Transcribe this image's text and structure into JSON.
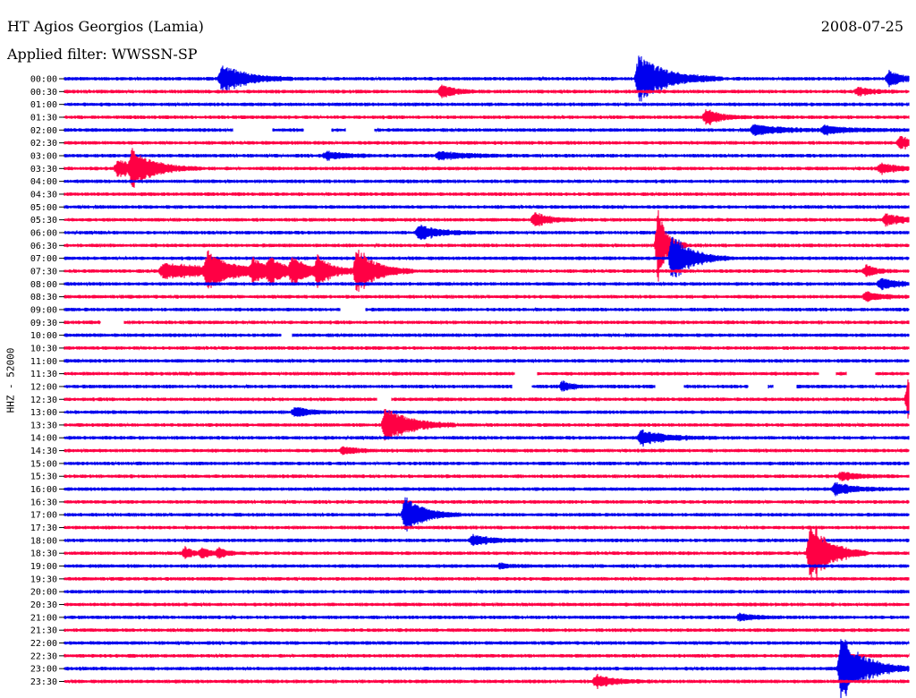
{
  "header": {
    "station": "HT Agios Georgios (Lamia)",
    "date": "2008-07-25",
    "filter_label": "Applied filter: WWSSN-SP"
  },
  "channel_label": "HHZ - 52000",
  "colors": {
    "blue": "#0000ee",
    "red": "#ff0044",
    "axis": "#000000"
  },
  "chart_data": {
    "type": "line",
    "title": "",
    "row_labels": [
      "00:00",
      "00:30",
      "01:00",
      "01:30",
      "02:00",
      "02:30",
      "03:00",
      "03:30",
      "04:00",
      "04:30",
      "05:00",
      "05:30",
      "06:00",
      "06:30",
      "07:00",
      "07:30",
      "08:00",
      "08:30",
      "09:00",
      "09:30",
      "10:00",
      "10:30",
      "11:00",
      "11:30",
      "12:00",
      "12:30",
      "13:00",
      "13:30",
      "14:00",
      "14:30",
      "15:00",
      "15:30",
      "16:00",
      "16:30",
      "17:00",
      "17:30",
      "18:00",
      "18:30",
      "19:00",
      "19:30",
      "20:00",
      "20:30",
      "21:00",
      "21:30",
      "22:00",
      "22:30",
      "23:00",
      "23:30"
    ],
    "row_colors": [
      "blue",
      "red"
    ],
    "minutes_per_row": 30,
    "events": [
      {
        "row": 0,
        "minute": 5.6,
        "amp": 1.2,
        "dur": 2.5
      },
      {
        "row": 0,
        "minute": 20.4,
        "amp": 1.9,
        "dur": 3.0
      },
      {
        "row": 0,
        "minute": 29.3,
        "amp": 0.6,
        "dur": 1.5
      },
      {
        "row": 1,
        "minute": 13.4,
        "amp": 0.5,
        "dur": 1.5
      },
      {
        "row": 1,
        "minute": 28.2,
        "amp": 0.3,
        "dur": 1.5
      },
      {
        "row": 3,
        "minute": 22.8,
        "amp": 0.6,
        "dur": 1.5
      },
      {
        "row": 4,
        "minute": 24.5,
        "amp": 0.4,
        "dur": 3.0
      },
      {
        "row": 4,
        "minute": 27.0,
        "amp": 0.3,
        "dur": 3.0
      },
      {
        "row": 5,
        "minute": 29.7,
        "amp": 0.5,
        "dur": 1.5
      },
      {
        "row": 6,
        "minute": 9.3,
        "amp": 0.3,
        "dur": 2.0
      },
      {
        "row": 6,
        "minute": 13.3,
        "amp": 0.3,
        "dur": 3.0
      },
      {
        "row": 7,
        "minute": 1.9,
        "amp": 0.7,
        "dur": 2.0
      },
      {
        "row": 7,
        "minute": 2.4,
        "amp": 1.2,
        "dur": 2.5
      },
      {
        "row": 7,
        "minute": 29.0,
        "amp": 0.4,
        "dur": 2.0
      },
      {
        "row": 11,
        "minute": 16.7,
        "amp": 0.6,
        "dur": 1.5
      },
      {
        "row": 11,
        "minute": 29.2,
        "amp": 0.5,
        "dur": 1.5
      },
      {
        "row": 12,
        "minute": 12.6,
        "amp": 0.6,
        "dur": 2.0
      },
      {
        "row": 13,
        "minute": 21.1,
        "amp": 2.8,
        "dur": 1.0
      },
      {
        "row": 14,
        "minute": 21.6,
        "amp": 2.0,
        "dur": 2.0
      },
      {
        "row": 15,
        "minute": 3.5,
        "amp": 0.6,
        "dur": 8.0
      },
      {
        "row": 15,
        "minute": 5.1,
        "amp": 1.3,
        "dur": 2.0
      },
      {
        "row": 15,
        "minute": 6.7,
        "amp": 0.8,
        "dur": 1.5
      },
      {
        "row": 15,
        "minute": 7.3,
        "amp": 0.9,
        "dur": 1.5
      },
      {
        "row": 15,
        "minute": 8.1,
        "amp": 1.0,
        "dur": 1.5
      },
      {
        "row": 15,
        "minute": 9.0,
        "amp": 1.1,
        "dur": 1.5
      },
      {
        "row": 15,
        "minute": 10.4,
        "amp": 1.9,
        "dur": 2.0
      },
      {
        "row": 15,
        "minute": 28.5,
        "amp": 0.5,
        "dur": 1.0
      },
      {
        "row": 16,
        "minute": 29.0,
        "amp": 0.4,
        "dur": 2.0
      },
      {
        "row": 17,
        "minute": 28.5,
        "amp": 0.4,
        "dur": 1.5
      },
      {
        "row": 24,
        "minute": 17.7,
        "amp": 0.4,
        "dur": 1.0
      },
      {
        "row": 25,
        "minute": 30.0,
        "amp": 2.0,
        "dur": 1.0
      },
      {
        "row": 26,
        "minute": 8.2,
        "amp": 0.4,
        "dur": 1.5
      },
      {
        "row": 27,
        "minute": 11.4,
        "amp": 1.6,
        "dur": 2.5
      },
      {
        "row": 28,
        "minute": 20.5,
        "amp": 0.6,
        "dur": 2.5
      },
      {
        "row": 29,
        "minute": 9.9,
        "amp": 0.3,
        "dur": 1.5
      },
      {
        "row": 31,
        "minute": 27.6,
        "amp": 0.3,
        "dur": 2.0
      },
      {
        "row": 32,
        "minute": 27.4,
        "amp": 0.5,
        "dur": 2.0
      },
      {
        "row": 34,
        "minute": 12.1,
        "amp": 1.4,
        "dur": 2.0
      },
      {
        "row": 36,
        "minute": 14.5,
        "amp": 0.4,
        "dur": 2.0
      },
      {
        "row": 37,
        "minute": 4.3,
        "amp": 0.5,
        "dur": 0.8
      },
      {
        "row": 37,
        "minute": 4.9,
        "amp": 0.4,
        "dur": 0.8
      },
      {
        "row": 37,
        "minute": 5.5,
        "amp": 0.4,
        "dur": 0.8
      },
      {
        "row": 37,
        "minute": 26.5,
        "amp": 2.7,
        "dur": 2.0
      },
      {
        "row": 38,
        "minute": 15.5,
        "amp": 0.2,
        "dur": 1.0
      },
      {
        "row": 42,
        "minute": 24.0,
        "amp": 0.3,
        "dur": 1.5
      },
      {
        "row": 46,
        "minute": 27.6,
        "amp": 2.6,
        "dur": 2.5
      },
      {
        "row": 47,
        "minute": 18.9,
        "amp": 0.5,
        "dur": 2.0
      }
    ],
    "gaps": [
      {
        "row": 4,
        "start": 6.0,
        "end": 7.4
      },
      {
        "row": 4,
        "start": 8.5,
        "end": 9.5
      },
      {
        "row": 4,
        "start": 10.0,
        "end": 11.0
      },
      {
        "row": 18,
        "start": 9.8,
        "end": 10.7
      },
      {
        "row": 19,
        "start": 1.3,
        "end": 2.1
      },
      {
        "row": 20,
        "start": 7.7,
        "end": 8.1
      },
      {
        "row": 23,
        "start": 16.0,
        "end": 16.8
      },
      {
        "row": 23,
        "start": 26.8,
        "end": 27.4
      },
      {
        "row": 23,
        "start": 27.8,
        "end": 28.8
      },
      {
        "row": 24,
        "start": 15.9,
        "end": 16.6
      },
      {
        "row": 24,
        "start": 21.0,
        "end": 22.0
      },
      {
        "row": 24,
        "start": 24.3,
        "end": 25.0
      },
      {
        "row": 24,
        "start": 25.2,
        "end": 26.0
      },
      {
        "row": 25,
        "start": 11.1,
        "end": 11.6
      }
    ]
  }
}
